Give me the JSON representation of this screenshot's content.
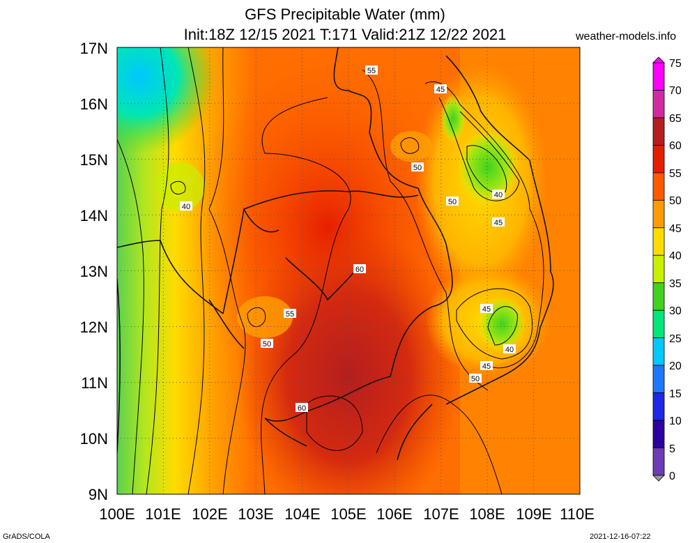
{
  "header": {
    "title_line1": "GFS Precipitable Water (mm)",
    "title_line2": "Init:18Z 12/15 2021 T:171 Valid:21Z 12/22 2021",
    "site": "weather-models.info"
  },
  "map": {
    "lat_labels": [
      "17N",
      "16N",
      "15N",
      "14N",
      "13N",
      "12N",
      "11N",
      "10N",
      "9N"
    ],
    "lon_labels": [
      "100E",
      "101E",
      "102E",
      "103E",
      "104E",
      "105E",
      "106E",
      "107E",
      "108E",
      "109E",
      "110E"
    ],
    "contour_labels": [
      "55",
      "45",
      "50",
      "40",
      "50",
      "45",
      "60",
      "55",
      "50",
      "45",
      "40",
      "45",
      "50",
      "60",
      "40"
    ],
    "lat_range": [
      9,
      17
    ],
    "lon_range": [
      100,
      110
    ]
  },
  "colorbar": {
    "levels": [
      "75",
      "70",
      "65",
      "60",
      "55",
      "50",
      "45",
      "40",
      "35",
      "30",
      "25",
      "20",
      "15",
      "10",
      "5",
      "0"
    ],
    "colors": [
      "#ff00ff",
      "#d22ba0",
      "#b41e1e",
      "#e61e00",
      "#ff5a00",
      "#ff9b00",
      "#ffdc00",
      "#c8f000",
      "#41d21e",
      "#00e678",
      "#00c8ff",
      "#1e78ff",
      "#1e28e6",
      "#2d00a0",
      "#6e3cb4",
      "#999999"
    ]
  },
  "footer": {
    "left": "GrADS/COLA",
    "right": "2021-12-16-07:22"
  }
}
